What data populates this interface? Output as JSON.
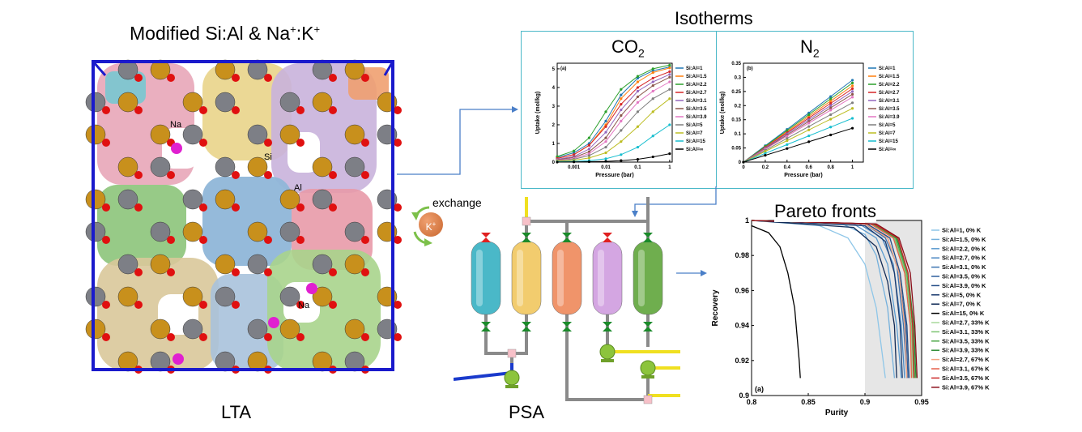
{
  "lta": {
    "title_main": "Modified Si:Al & Na",
    "title_sup1": "+",
    "title_mid": ":K",
    "title_sup2": "+",
    "label": "LTA",
    "atom_labels": {
      "na_top": "Na",
      "na_bottom": "Na",
      "si": "Si",
      "al": "Al"
    },
    "exchange_label": "exchange",
    "k_ion": "K",
    "k_sup": "+"
  },
  "isotherms": {
    "title": "Isotherms",
    "co2_label": "CO",
    "co2_sub": "2",
    "n2_label": "N",
    "n2_sub": "2"
  },
  "psa": {
    "label": "PSA",
    "column_colors": [
      "#4ab8c8",
      "#f2cc6e",
      "#f0946a",
      "#d4a6e2",
      "#6fae4e"
    ]
  },
  "pareto": {
    "title": "Pareto fronts"
  },
  "chart_data": [
    {
      "id": "co2-isotherm",
      "type": "line",
      "panel_tag": "(a)",
      "xlabel": "Pressure (bar)",
      "ylabel": "Uptake (mol/kg)",
      "xscale": "log",
      "xlim": [
        0.0003,
        1.2
      ],
      "ylim": [
        0,
        5.3
      ],
      "xticks": [
        "0.001",
        "0.01",
        "0.1",
        "1"
      ],
      "yticks": [
        "0",
        "1",
        "2",
        "3",
        "4",
        "5"
      ],
      "x": [
        0.0003,
        0.001,
        0.003,
        0.01,
        0.03,
        0.1,
        0.3,
        1
      ],
      "series": [
        {
          "name": "Si:Al=1",
          "color": "#1f77b4",
          "values": [
            0.25,
            0.5,
            1.0,
            2.2,
            3.6,
            4.5,
            4.9,
            5.1
          ]
        },
        {
          "name": "Si:Al=1.5",
          "color": "#ff7f0e",
          "values": [
            0.2,
            0.4,
            0.9,
            2.0,
            3.4,
            4.3,
            4.8,
            5.05
          ]
        },
        {
          "name": "Si:Al=2.2",
          "color": "#2ca02c",
          "values": [
            0.3,
            0.6,
            1.3,
            2.7,
            3.9,
            4.6,
            5.0,
            5.2
          ]
        },
        {
          "name": "Si:Al=2.7",
          "color": "#d62728",
          "values": [
            0.2,
            0.4,
            0.9,
            1.9,
            3.1,
            4.0,
            4.5,
            4.85
          ]
        },
        {
          "name": "Si:Al=3.1",
          "color": "#9467bd",
          "values": [
            0.15,
            0.3,
            0.7,
            1.6,
            2.8,
            3.8,
            4.3,
            4.7
          ]
        },
        {
          "name": "Si:Al=3.5",
          "color": "#8c564b",
          "values": [
            0.12,
            0.25,
            0.55,
            1.3,
            2.5,
            3.5,
            4.1,
            4.55
          ]
        },
        {
          "name": "Si:Al=3.9",
          "color": "#e377c2",
          "values": [
            0.1,
            0.2,
            0.45,
            1.1,
            2.2,
            3.2,
            3.8,
            4.3
          ]
        },
        {
          "name": "Si:Al=5",
          "color": "#7f7f7f",
          "values": [
            0.08,
            0.15,
            0.35,
            0.8,
            1.7,
            2.7,
            3.4,
            3.9
          ]
        },
        {
          "name": "Si:Al=7",
          "color": "#bcbd22",
          "values": [
            0.05,
            0.1,
            0.22,
            0.5,
            1.1,
            1.9,
            2.7,
            3.4
          ]
        },
        {
          "name": "Si:Al=15",
          "color": "#17becf",
          "values": [
            0.02,
            0.04,
            0.08,
            0.18,
            0.4,
            0.8,
            1.4,
            2.0
          ]
        },
        {
          "name": "Si:Al=∞",
          "color": "#000000",
          "values": [
            0.0,
            0.01,
            0.02,
            0.04,
            0.08,
            0.15,
            0.28,
            0.45
          ]
        }
      ]
    },
    {
      "id": "n2-isotherm",
      "type": "line",
      "panel_tag": "(b)",
      "xlabel": "Pressure (bar)",
      "ylabel": "Uptake (mol/kg)",
      "xlim": [
        0,
        1.1
      ],
      "ylim": [
        0,
        0.35
      ],
      "xticks": [
        "0",
        "0.2",
        "0.4",
        "0.6",
        "0.8",
        "1"
      ],
      "yticks": [
        "0",
        "0.05",
        "0.1",
        "0.15",
        "0.2",
        "0.25",
        "0.3",
        "0.35"
      ],
      "x": [
        0,
        0.2,
        0.4,
        0.6,
        0.8,
        1.0
      ],
      "series": [
        {
          "name": "Si:Al=1",
          "color": "#1f77b4",
          "values": [
            0,
            0.058,
            0.116,
            0.174,
            0.232,
            0.29
          ]
        },
        {
          "name": "Si:Al=1.5",
          "color": "#ff7f0e",
          "values": [
            0,
            0.054,
            0.108,
            0.162,
            0.216,
            0.27
          ]
        },
        {
          "name": "Si:Al=2.2",
          "color": "#2ca02c",
          "values": [
            0,
            0.056,
            0.112,
            0.168,
            0.224,
            0.28
          ]
        },
        {
          "name": "Si:Al=2.7",
          "color": "#d62728",
          "values": [
            0,
            0.052,
            0.104,
            0.156,
            0.208,
            0.26
          ]
        },
        {
          "name": "Si:Al=3.1",
          "color": "#9467bd",
          "values": [
            0,
            0.05,
            0.1,
            0.15,
            0.2,
            0.25
          ]
        },
        {
          "name": "Si:Al=3.5",
          "color": "#8c564b",
          "values": [
            0,
            0.048,
            0.096,
            0.144,
            0.192,
            0.24
          ]
        },
        {
          "name": "Si:Al=3.9",
          "color": "#e377c2",
          "values": [
            0,
            0.046,
            0.092,
            0.138,
            0.184,
            0.23
          ]
        },
        {
          "name": "Si:Al=5",
          "color": "#7f7f7f",
          "values": [
            0,
            0.042,
            0.084,
            0.126,
            0.168,
            0.21
          ]
        },
        {
          "name": "Si:Al=7",
          "color": "#bcbd22",
          "values": [
            0,
            0.038,
            0.076,
            0.114,
            0.152,
            0.19
          ]
        },
        {
          "name": "Si:Al=15",
          "color": "#17becf",
          "values": [
            0,
            0.031,
            0.062,
            0.093,
            0.124,
            0.155
          ]
        },
        {
          "name": "Si:Al=∞",
          "color": "#000000",
          "values": [
            0,
            0.024,
            0.048,
            0.072,
            0.096,
            0.12
          ]
        }
      ]
    },
    {
      "id": "pareto-fronts",
      "type": "line",
      "panel_tag": "(a)",
      "xlabel": "Purity",
      "ylabel": "Recovery",
      "xlim": [
        0.8,
        0.95
      ],
      "ylim": [
        0.9,
        1.0
      ],
      "xticks": [
        "0.8",
        "0.85",
        "0.9",
        "0.95"
      ],
      "yticks": [
        "0.9",
        "0.92",
        "0.94",
        "0.96",
        "0.98",
        "1"
      ],
      "shaded_region_x": [
        0.9,
        0.95
      ],
      "series": [
        {
          "name": "Si:Al=1, 0% K",
          "color": "#8ec6e8",
          "points": [
            [
              0.8,
              1
            ],
            [
              0.86,
              0.997
            ],
            [
              0.885,
              0.99
            ],
            [
              0.9,
              0.975
            ],
            [
              0.91,
              0.95
            ],
            [
              0.918,
              0.91
            ]
          ]
        },
        {
          "name": "Si:Al=1.5, 0% K",
          "color": "#74b0dc",
          "points": [
            [
              0.8,
              1
            ],
            [
              0.88,
              0.998
            ],
            [
              0.9,
              0.992
            ],
            [
              0.91,
              0.98
            ],
            [
              0.92,
              0.95
            ],
            [
              0.926,
              0.91
            ]
          ]
        },
        {
          "name": "Si:Al=2.2, 0% K",
          "color": "#5b9bd0",
          "points": [
            [
              0.8,
              1
            ],
            [
              0.89,
              0.998
            ],
            [
              0.91,
              0.99
            ],
            [
              0.92,
              0.975
            ],
            [
              0.928,
              0.94
            ],
            [
              0.932,
              0.91
            ]
          ]
        },
        {
          "name": "Si:Al=2.7, 0% K",
          "color": "#4a87c2",
          "points": [
            [
              0.8,
              1
            ],
            [
              0.895,
              0.998
            ],
            [
              0.915,
              0.99
            ],
            [
              0.925,
              0.975
            ],
            [
              0.932,
              0.94
            ],
            [
              0.935,
              0.91
            ]
          ]
        },
        {
          "name": "Si:Al=3.1, 0% K",
          "color": "#3b73b0",
          "points": [
            [
              0.8,
              1
            ],
            [
              0.9,
              0.998
            ],
            [
              0.918,
              0.99
            ],
            [
              0.928,
              0.975
            ],
            [
              0.934,
              0.94
            ],
            [
              0.937,
              0.91
            ]
          ]
        },
        {
          "name": "Si:Al=3.5, 0% K",
          "color": "#2e5f9c",
          "points": [
            [
              0.8,
              1
            ],
            [
              0.9,
              0.998
            ],
            [
              0.92,
              0.99
            ],
            [
              0.93,
              0.97
            ],
            [
              0.936,
              0.94
            ],
            [
              0.938,
              0.91
            ]
          ]
        },
        {
          "name": "Si:Al=3.9, 0% K",
          "color": "#234c86",
          "points": [
            [
              0.8,
              1
            ],
            [
              0.902,
              0.998
            ],
            [
              0.922,
              0.99
            ],
            [
              0.931,
              0.97
            ],
            [
              0.937,
              0.94
            ],
            [
              0.939,
              0.91
            ]
          ]
        },
        {
          "name": "Si:Al=5, 0% K",
          "color": "#1a3a6e",
          "points": [
            [
              0.8,
              1
            ],
            [
              0.9,
              0.997
            ],
            [
              0.918,
              0.988
            ],
            [
              0.926,
              0.97
            ],
            [
              0.931,
              0.94
            ],
            [
              0.933,
              0.91
            ]
          ]
        },
        {
          "name": "Si:Al=7, 0% K",
          "color": "#112a56",
          "points": [
            [
              0.8,
              1
            ],
            [
              0.89,
              0.996
            ],
            [
              0.91,
              0.985
            ],
            [
              0.92,
              0.965
            ],
            [
              0.926,
              0.94
            ],
            [
              0.928,
              0.91
            ]
          ]
        },
        {
          "name": "Si:Al=15, 0% K",
          "color": "#000000",
          "points": [
            [
              0.8,
              0.997
            ],
            [
              0.815,
              0.993
            ],
            [
              0.825,
              0.985
            ],
            [
              0.832,
              0.97
            ],
            [
              0.838,
              0.95
            ],
            [
              0.842,
              0.92
            ],
            [
              0.843,
              0.91
            ]
          ]
        },
        {
          "name": "Si:Al=2.7, 33% K",
          "color": "#a8d89a",
          "points": [
            [
              0.8,
              1
            ],
            [
              0.905,
              0.998
            ],
            [
              0.925,
              0.99
            ],
            [
              0.935,
              0.97
            ],
            [
              0.94,
              0.94
            ],
            [
              0.942,
              0.91
            ]
          ]
        },
        {
          "name": "Si:Al=3.1, 33% K",
          "color": "#7cc471",
          "points": [
            [
              0.8,
              1
            ],
            [
              0.906,
              0.998
            ],
            [
              0.926,
              0.99
            ],
            [
              0.936,
              0.97
            ],
            [
              0.941,
              0.94
            ],
            [
              0.943,
              0.91
            ]
          ]
        },
        {
          "name": "Si:Al=3.5, 33% K",
          "color": "#4fa84a",
          "points": [
            [
              0.8,
              1
            ],
            [
              0.907,
              0.998
            ],
            [
              0.927,
              0.99
            ],
            [
              0.937,
              0.97
            ],
            [
              0.942,
              0.94
            ],
            [
              0.944,
              0.91
            ]
          ]
        },
        {
          "name": "Si:Al=3.9, 33% K",
          "color": "#2a8a32",
          "points": [
            [
              0.8,
              1
            ],
            [
              0.908,
              0.998
            ],
            [
              0.928,
              0.99
            ],
            [
              0.938,
              0.97
            ],
            [
              0.943,
              0.94
            ],
            [
              0.945,
              0.91
            ]
          ]
        },
        {
          "name": "Si:Al=2.7, 67% K",
          "color": "#f4a582",
          "points": [
            [
              0.8,
              1
            ],
            [
              0.9,
              0.998
            ],
            [
              0.92,
              0.99
            ],
            [
              0.93,
              0.97
            ],
            [
              0.935,
              0.94
            ],
            [
              0.937,
              0.91
            ]
          ]
        },
        {
          "name": "Si:Al=3.1, 67% K",
          "color": "#e6614a",
          "points": [
            [
              0.8,
              1
            ],
            [
              0.905,
              0.998
            ],
            [
              0.925,
              0.99
            ],
            [
              0.935,
              0.97
            ],
            [
              0.94,
              0.94
            ],
            [
              0.941,
              0.91
            ]
          ]
        },
        {
          "name": "Si:Al=3.5, 67% K",
          "color": "#cc2a2a",
          "points": [
            [
              0.8,
              1
            ],
            [
              0.908,
              0.998
            ],
            [
              0.929,
              0.99
            ],
            [
              0.938,
              0.97
            ],
            [
              0.942,
              0.94
            ],
            [
              0.943,
              0.91
            ]
          ]
        },
        {
          "name": "Si:Al=3.9, 67% K",
          "color": "#8b0e1a",
          "points": [
            [
              0.8,
              1
            ],
            [
              0.91,
              0.998
            ],
            [
              0.93,
              0.99
            ],
            [
              0.94,
              0.97
            ],
            [
              0.944,
              0.94
            ],
            [
              0.946,
              0.91
            ]
          ]
        }
      ]
    }
  ]
}
